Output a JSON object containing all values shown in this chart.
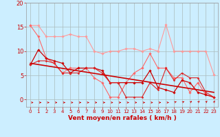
{
  "bg_color": "#cceeff",
  "grid_color": "#aabbbb",
  "xlabel": "Vent moyen/en rafales ( km/h )",
  "xlabel_color": "#cc0000",
  "xlabel_fontsize": 6.5,
  "tick_color": "#cc0000",
  "ylim": [
    -1.5,
    20
  ],
  "xlim": [
    -0.5,
    23.5
  ],
  "yticks": [
    0,
    5,
    10,
    15,
    20
  ],
  "xticks": [
    0,
    1,
    2,
    3,
    4,
    5,
    6,
    7,
    8,
    9,
    10,
    11,
    12,
    13,
    14,
    15,
    16,
    17,
    18,
    19,
    20,
    21,
    22,
    23
  ],
  "lines": [
    {
      "x": [
        0,
        1,
        2,
        3,
        4,
        5,
        6,
        7,
        8,
        9,
        10,
        11,
        12,
        13,
        14,
        15,
        16,
        17,
        18,
        19,
        20,
        21,
        22,
        23
      ],
      "y": [
        15.3,
        15.3,
        13.0,
        13.0,
        13.0,
        13.5,
        13.0,
        13.0,
        10.0,
        9.5,
        10.0,
        10.0,
        10.5,
        10.5,
        10.0,
        10.5,
        10.0,
        15.5,
        10.0,
        10.0,
        10.0,
        10.0,
        10.0,
        5.2
      ],
      "color": "#ff9999",
      "lw": 0.8,
      "marker": "D",
      "ms": 1.8
    },
    {
      "x": [
        0,
        1,
        2,
        3,
        4,
        5,
        6,
        7,
        8,
        9,
        10,
        11,
        12,
        13,
        14,
        15,
        16,
        17,
        18,
        19,
        20,
        21,
        22,
        23
      ],
      "y": [
        15.3,
        13.0,
        8.5,
        7.5,
        5.5,
        6.5,
        6.5,
        6.5,
        4.5,
        3.5,
        0.5,
        0.5,
        3.5,
        5.5,
        6.5,
        9.5,
        6.5,
        6.5,
        4.5,
        4.5,
        1.5,
        3.5,
        1.0,
        0.5
      ],
      "color": "#ff6666",
      "lw": 0.8,
      "marker": "D",
      "ms": 1.8
    },
    {
      "x": [
        0,
        1,
        2,
        3,
        4,
        5,
        6,
        7,
        8,
        9,
        10,
        11,
        12,
        13,
        14,
        15,
        16,
        17,
        18,
        19,
        20,
        21,
        22,
        23
      ],
      "y": [
        7.2,
        10.3,
        8.5,
        8.0,
        7.5,
        5.5,
        6.5,
        6.5,
        6.5,
        6.0,
        3.5,
        3.5,
        3.5,
        3.5,
        3.5,
        6.0,
        2.5,
        2.0,
        1.5,
        4.0,
        3.5,
        1.5,
        1.0,
        0.5
      ],
      "color": "#cc0000",
      "lw": 0.9,
      "marker": "D",
      "ms": 1.8
    },
    {
      "x": [
        0,
        1,
        2,
        3,
        4,
        5,
        6,
        7,
        8,
        9,
        10,
        11,
        12,
        13,
        14,
        15,
        16,
        17,
        18,
        19,
        20,
        21,
        22,
        23
      ],
      "y": [
        7.2,
        8.0,
        8.0,
        7.5,
        5.5,
        5.5,
        5.5,
        6.5,
        6.5,
        5.5,
        3.5,
        3.5,
        0.5,
        0.5,
        0.5,
        3.5,
        2.0,
        6.5,
        4.0,
        5.5,
        4.5,
        4.5,
        1.5,
        0.5
      ],
      "color": "#dd2222",
      "lw": 0.8,
      "marker": "D",
      "ms": 1.5
    },
    {
      "x": [
        0,
        23
      ],
      "y": [
        7.5,
        1.5
      ],
      "color": "#cc0000",
      "lw": 1.2,
      "marker": null,
      "ms": 0
    }
  ],
  "arrow_color": "#cc0000",
  "arrow_lw": 0.6
}
